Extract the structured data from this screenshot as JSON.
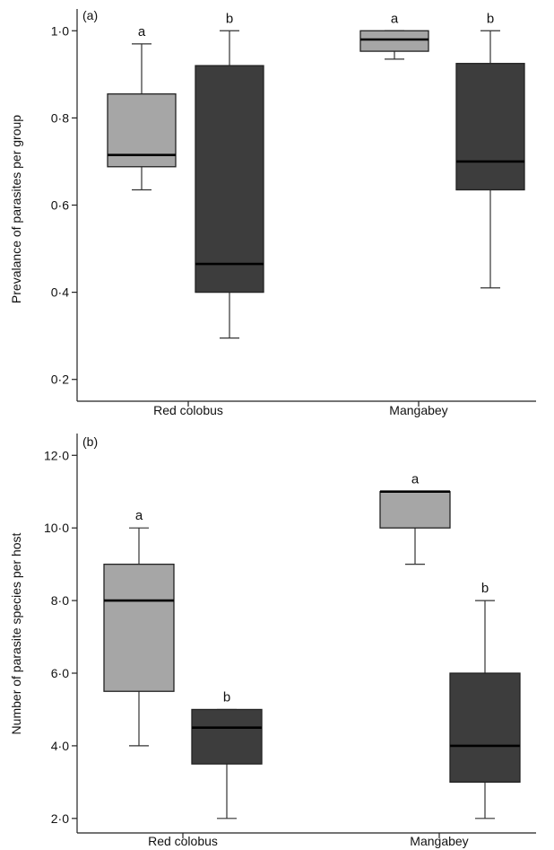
{
  "chart_data": [
    {
      "type": "box",
      "panel_label": "(a)",
      "ylabel": "Prevalance of parasites per group",
      "xlabel": "",
      "ylim": [
        0.15,
        1.05
      ],
      "yticks": [
        {
          "value": 0.2,
          "label": "0·2"
        },
        {
          "value": 0.4,
          "label": "0·4"
        },
        {
          "value": 0.6,
          "label": "0·6"
        },
        {
          "value": 0.8,
          "label": "0·8"
        },
        {
          "value": 1.0,
          "label": "1·0"
        }
      ],
      "categories": [
        "Red colobus",
        "Mangabey"
      ],
      "boxes": [
        {
          "category": "Red colobus",
          "shade": "light",
          "min": 0.635,
          "q1": 0.688,
          "median": 0.715,
          "q3": 0.855,
          "max": 0.97,
          "letter": "a"
        },
        {
          "category": "Red colobus",
          "shade": "dark",
          "min": 0.295,
          "q1": 0.4,
          "median": 0.465,
          "q3": 0.92,
          "max": 1.0,
          "letter": "b"
        },
        {
          "category": "Mangabey",
          "shade": "light",
          "min": 0.935,
          "q1": 0.953,
          "median": 0.98,
          "q3": 1.0,
          "max": 1.0,
          "letter": "a"
        },
        {
          "category": "Mangabey",
          "shade": "dark",
          "min": 0.41,
          "q1": 0.635,
          "median": 0.7,
          "q3": 0.925,
          "max": 1.0,
          "letter": "b"
        }
      ],
      "colors": {
        "light": "#a6a6a6",
        "dark": "#3d3d3d"
      }
    },
    {
      "type": "box",
      "panel_label": "(b)",
      "ylabel": "Number of parasite species per host",
      "xlabel": "",
      "ylim": [
        1.6,
        12.6
      ],
      "yticks": [
        {
          "value": 2,
          "label": "2·0"
        },
        {
          "value": 4,
          "label": "4·0"
        },
        {
          "value": 6,
          "label": "6·0"
        },
        {
          "value": 8,
          "label": "8·0"
        },
        {
          "value": 10,
          "label": "10·0"
        },
        {
          "value": 12,
          "label": "12·0"
        }
      ],
      "categories": [
        "Red colobus",
        "Mangabey"
      ],
      "boxes": [
        {
          "category": "Red colobus",
          "shade": "light",
          "min": 4.0,
          "q1": 5.5,
          "median": 8.0,
          "q3": 9.0,
          "max": 10.0,
          "letter": "a"
        },
        {
          "category": "Red colobus",
          "shade": "dark",
          "min": 2.0,
          "q1": 3.5,
          "median": 4.5,
          "q3": 5.0,
          "max": 5.0,
          "letter": "b"
        },
        {
          "category": "Mangabey",
          "shade": "light",
          "min": 9.0,
          "q1": 10.0,
          "median": 11.0,
          "q3": 11.0,
          "max": 11.0,
          "letter": "a"
        },
        {
          "category": "Mangabey",
          "shade": "dark",
          "min": 2.0,
          "q1": 3.0,
          "median": 4.0,
          "q3": 6.0,
          "max": 8.0,
          "letter": "b"
        }
      ],
      "colors": {
        "light": "#a6a6a6",
        "dark": "#3d3d3d"
      }
    }
  ]
}
